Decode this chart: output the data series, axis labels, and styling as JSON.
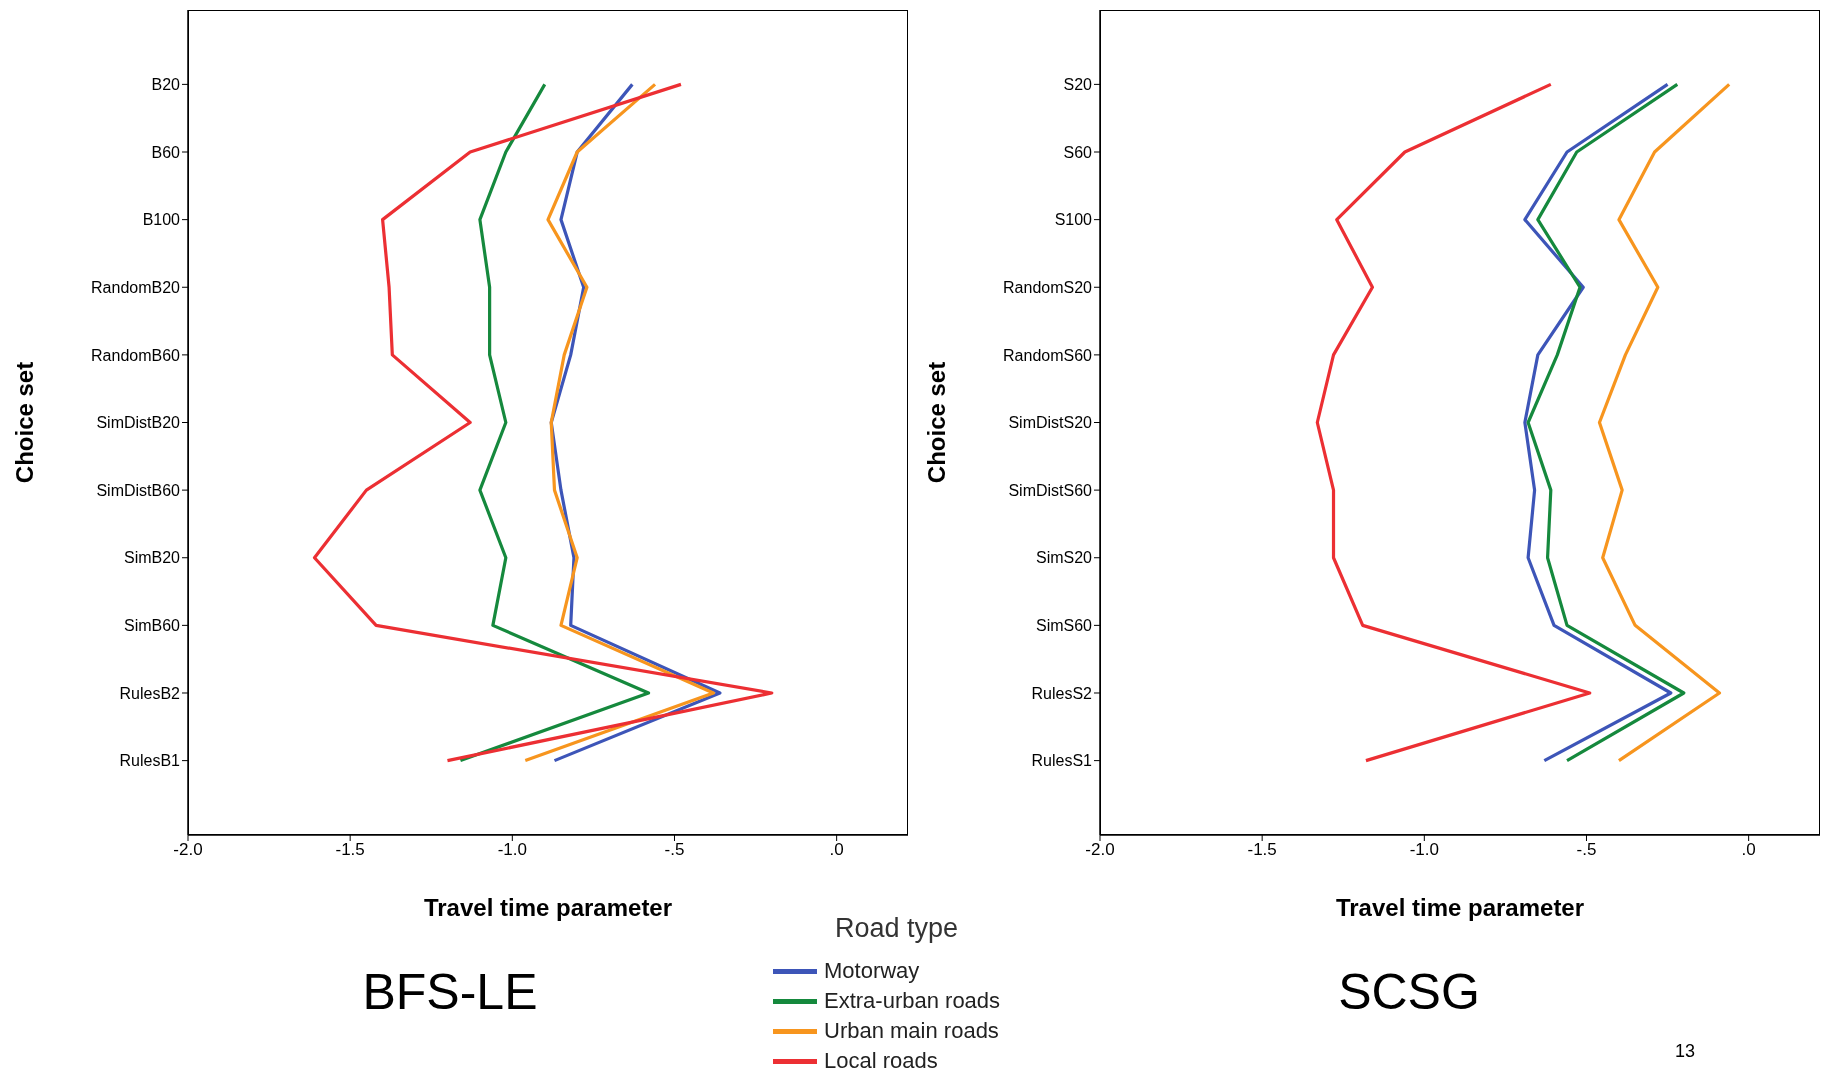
{
  "chart_data": [
    {
      "type": "line",
      "orientation": "horizontal",
      "title": "BFS-LE",
      "xlabel": "Travel time parameter",
      "ylabel": "Choice set",
      "legend_title": "Road type",
      "legend": "bottom right",
      "grid": false,
      "marker": "none",
      "line_style": "solid",
      "categories": [
        "B20",
        "B60",
        "B100",
        "RandomB20",
        "RandomB60",
        "SimDistB20",
        "SimDistB60",
        "SimB20",
        "SimB60",
        "RulesB2",
        "RulesB1"
      ],
      "xlim": [
        -2.0,
        0.22
      ],
      "xticks": [
        {
          "value": -2.0,
          "label": "-2.0"
        },
        {
          "value": -1.5,
          "label": "-1.5"
        },
        {
          "value": -1.0,
          "label": "-1.0"
        },
        {
          "value": -0.5,
          "label": "-.5"
        },
        {
          "value": 0,
          "label": ".0"
        }
      ],
      "series": [
        {
          "name": "Motorway",
          "color": "#3d55b8",
          "values": [
            -0.63,
            -0.8,
            -0.85,
            -0.78,
            -0.82,
            -0.88,
            -0.85,
            -0.81,
            -0.82,
            -0.36,
            -0.87
          ]
        },
        {
          "name": "Extra-urban roads",
          "color": "#15893d",
          "values": [
            -0.9,
            -1.02,
            -1.1,
            -1.07,
            -1.07,
            -1.02,
            -1.1,
            -1.02,
            -1.06,
            -0.58,
            -1.16
          ]
        },
        {
          "name": "Urban main roads",
          "color": "#f7951e",
          "values": [
            -0.56,
            -0.8,
            -0.89,
            -0.77,
            -0.84,
            -0.88,
            -0.87,
            -0.8,
            -0.85,
            -0.38,
            -0.96
          ]
        },
        {
          "name": "Local roads",
          "color": "#ec2f33",
          "values": [
            -0.48,
            -1.13,
            -1.4,
            -1.38,
            -1.37,
            -1.13,
            -1.45,
            -1.61,
            -1.42,
            -0.2,
            -1.2
          ]
        }
      ]
    },
    {
      "type": "line",
      "orientation": "horizontal",
      "title": "SCSG",
      "xlabel": "Travel time parameter",
      "ylabel": "Choice set",
      "grid": false,
      "marker": "none",
      "line_style": "solid",
      "annotations": [
        "13"
      ],
      "categories": [
        "S20",
        "S60",
        "S100",
        "RandomS20",
        "RandomS60",
        "SimDistS20",
        "SimDistS60",
        "SimS20",
        "SimS60",
        "RulesS2",
        "RulesS1"
      ],
      "xlim": [
        -2.0,
        0.22
      ],
      "xticks": [
        {
          "value": -2.0,
          "label": "-2.0"
        },
        {
          "value": -1.5,
          "label": "-1.5"
        },
        {
          "value": -1.0,
          "label": "-1.0"
        },
        {
          "value": -0.5,
          "label": "-.5"
        },
        {
          "value": 0,
          "label": ".0"
        }
      ],
      "series": [
        {
          "color": "#3d55b8",
          "values": [
            -0.25,
            -0.56,
            -0.69,
            -0.51,
            -0.65,
            -0.69,
            -0.66,
            -0.68,
            -0.6,
            -0.24,
            -0.63
          ]
        },
        {
          "color": "#15893d",
          "values": [
            -0.22,
            -0.53,
            -0.65,
            -0.52,
            -0.59,
            -0.68,
            -0.61,
            -0.62,
            -0.56,
            -0.2,
            -0.56
          ]
        },
        {
          "color": "#f7951e",
          "values": [
            -0.06,
            -0.29,
            -0.4,
            -0.28,
            -0.38,
            -0.46,
            -0.39,
            -0.45,
            -0.35,
            -0.09,
            -0.4
          ]
        },
        {
          "color": "#ec2f33",
          "values": [
            -0.61,
            -1.06,
            -1.27,
            -1.16,
            -1.28,
            -1.33,
            -1.28,
            -1.28,
            -1.19,
            -0.49,
            -1.18
          ]
        }
      ]
    }
  ]
}
